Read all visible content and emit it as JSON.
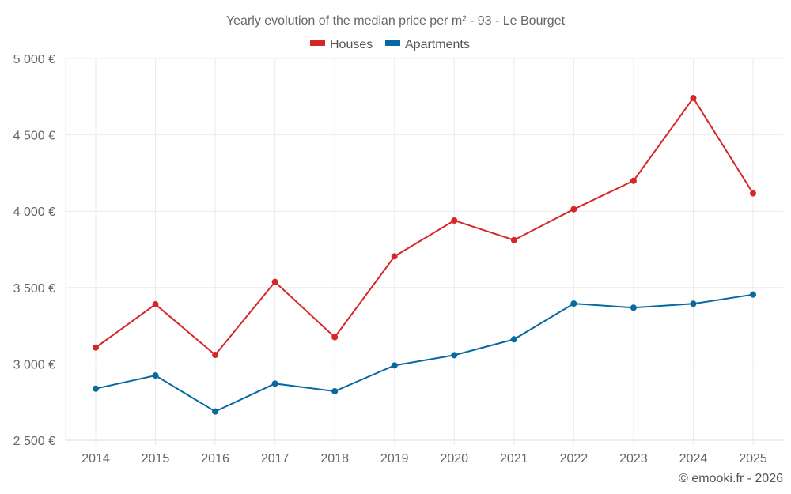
{
  "chart_data": {
    "type": "line",
    "title": "Yearly evolution of the median price per m² - 93 - Le Bourget",
    "xlabel": "",
    "ylabel": "",
    "categories": [
      "2014",
      "2015",
      "2016",
      "2017",
      "2018",
      "2019",
      "2020",
      "2021",
      "2022",
      "2023",
      "2024",
      "2025"
    ],
    "series": [
      {
        "name": "Houses",
        "color": "#d62728",
        "values": [
          3107,
          3390,
          3059,
          3537,
          3175,
          3704,
          3939,
          3811,
          4013,
          4199,
          4741,
          4117
        ]
      },
      {
        "name": "Apartments",
        "color": "#0868a0",
        "values": [
          2838,
          2924,
          2688,
          2871,
          2821,
          2990,
          3057,
          3161,
          3395,
          3368,
          3394,
          3454
        ]
      }
    ],
    "ylim": [
      2500,
      5000
    ],
    "yticks": [
      2500,
      3000,
      3500,
      4000,
      4500,
      5000
    ],
    "ytick_labels": [
      "2 500 €",
      "3 000 €",
      "3 500 €",
      "4 000 €",
      "4 500 €",
      "5 000 €"
    ],
    "grid": true,
    "legend_position": "top-center"
  },
  "credit": "© emooki.fr - 2026"
}
